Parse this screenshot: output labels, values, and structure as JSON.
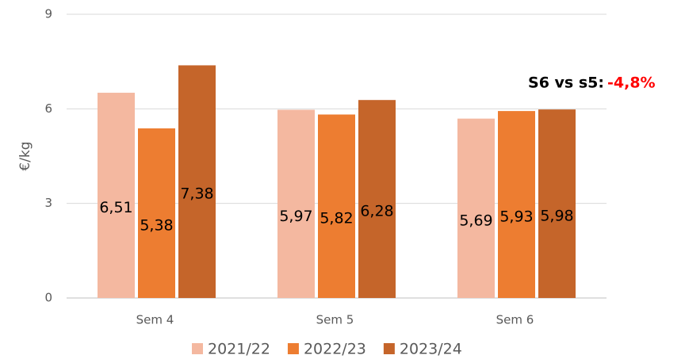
{
  "chart_data": {
    "type": "bar",
    "categories": [
      "Sem 4",
      "Sem 5",
      "Sem 6"
    ],
    "series": [
      {
        "name": "2021/22",
        "color": "#f4b8a0",
        "values": [
          6.51,
          5.97,
          5.69
        ],
        "value_labels": [
          "6,51",
          "5,97",
          "5,69"
        ]
      },
      {
        "name": "2022/23",
        "color": "#ed7d31",
        "values": [
          5.38,
          5.82,
          5.93
        ],
        "value_labels": [
          "5,38",
          "5,82",
          "5,93"
        ]
      },
      {
        "name": "2023/24",
        "color": "#c5652a",
        "values": [
          7.38,
          6.28,
          5.98
        ],
        "value_labels": [
          "7,38",
          "6,28",
          "5,98"
        ]
      }
    ],
    "ylabel": "€/kg",
    "ylim": [
      0,
      9
    ],
    "yticks": [
      0,
      3,
      6,
      9
    ],
    "grid": true,
    "annotation": {
      "text": "S6 vs s5:",
      "value": "-4,8%"
    },
    "legend": "bottom"
  }
}
